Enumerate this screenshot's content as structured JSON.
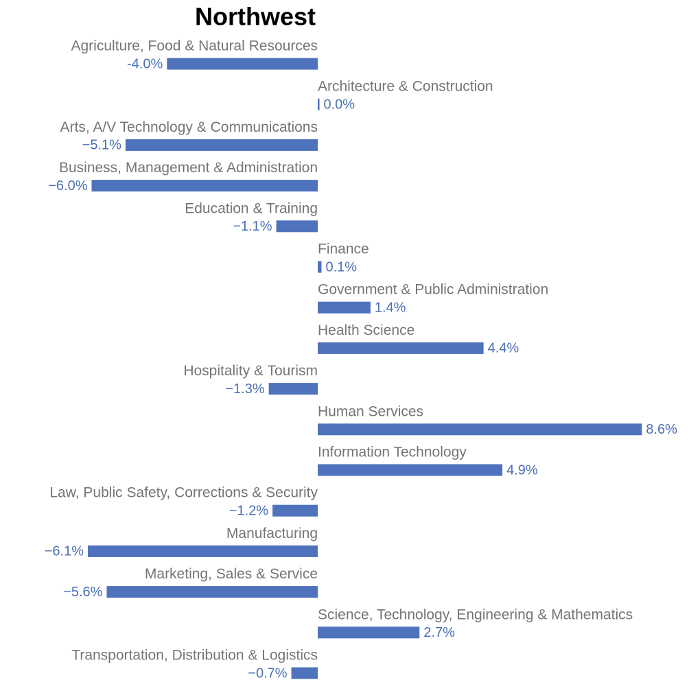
{
  "chart_data": {
    "type": "bar",
    "orientation": "horizontal",
    "title": "Northwest",
    "color": "#4f72bd",
    "categories": [
      "Agriculture, Food & Natural Resources",
      "Architecture & Construction",
      "Arts, A/V Technology & Communications",
      "Business, Management & Administration",
      "Education & Training",
      "Finance",
      "Government & Public Administration",
      "Health Science",
      "Hospitality & Tourism",
      "Human Services",
      "Information Technology",
      "Law, Public Safety, Corrections & Security",
      "Manufacturing",
      "Marketing, Sales & Service",
      "Science, Technology, Engineering & Mathematics",
      "Transportation, Distribution & Logistics"
    ],
    "values": [
      -4.0,
      0.0,
      -5.1,
      -6.0,
      -1.1,
      0.1,
      1.4,
      4.4,
      -1.3,
      8.6,
      4.9,
      -1.2,
      -6.1,
      -5.6,
      2.7,
      -0.7
    ],
    "value_labels": [
      "-4.0%",
      "0.0%",
      "−5.1%",
      "−6.0%",
      "−1.1%",
      "0.1%",
      "1.4%",
      "4.4%",
      "−1.3%",
      "8.6%",
      "4.9%",
      "−1.2%",
      "−6.1%",
      "−5.6%",
      "2.7%",
      "−0.7%"
    ]
  }
}
